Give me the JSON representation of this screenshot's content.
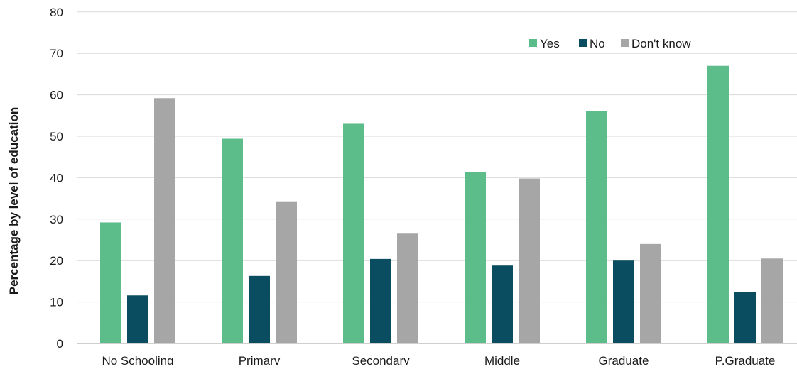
{
  "chart_data": {
    "type": "bar",
    "title": "",
    "xlabel": "",
    "ylabel": "Percentage by level of  education",
    "ylim": [
      0,
      80
    ],
    "yticks": [
      0,
      10,
      20,
      30,
      40,
      50,
      60,
      70,
      80
    ],
    "grid": true,
    "legend_position": "top-right",
    "categories": [
      "No Schooling",
      "Primary",
      "Secondary",
      "Middle",
      "Graduate",
      "P.Graduate"
    ],
    "series": [
      {
        "name": "Yes",
        "color": "#5cbc8a",
        "values": [
          29.2,
          49.4,
          53.0,
          41.3,
          56.0,
          67.0
        ]
      },
      {
        "name": "No",
        "color": "#0a4d61",
        "values": [
          11.6,
          16.3,
          20.4,
          18.8,
          20.0,
          12.5
        ]
      },
      {
        "name": "Don't know",
        "color": "#a6a6a6",
        "values": [
          59.2,
          34.3,
          26.5,
          39.8,
          24.0,
          20.5
        ]
      }
    ]
  }
}
